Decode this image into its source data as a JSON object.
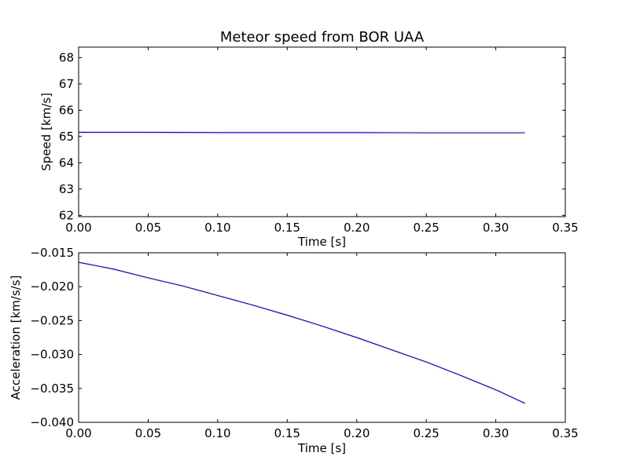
{
  "chart_data": [
    {
      "type": "line",
      "title": "Meteor speed from  BOR UAA",
      "xlabel": "Time [s]",
      "ylabel": "Speed [km/s]",
      "xlim": [
        0.0,
        0.35
      ],
      "ylim": [
        61.95,
        68.4
      ],
      "xticks": [
        "0.00",
        "0.05",
        "0.10",
        "0.15",
        "0.20",
        "0.25",
        "0.30",
        "0.35"
      ],
      "yticks": [
        "62",
        "63",
        "64",
        "65",
        "66",
        "67",
        "68"
      ],
      "grid": false,
      "line_color": "#0000ff",
      "series": [
        {
          "x": [
            0.0,
            0.05,
            0.1,
            0.15,
            0.2,
            0.25,
            0.3,
            0.321
          ],
          "y": [
            65.16,
            65.16,
            65.15,
            65.15,
            65.15,
            65.14,
            65.14,
            65.14
          ]
        }
      ]
    },
    {
      "type": "line",
      "title": "",
      "xlabel": "Time [s]",
      "ylabel": "Acceleration [km/s/s]",
      "xlim": [
        0.0,
        0.35
      ],
      "ylim": [
        -0.04,
        -0.015
      ],
      "xticks": [
        "0.00",
        "0.05",
        "0.10",
        "0.15",
        "0.20",
        "0.25",
        "0.30",
        "0.35"
      ],
      "yticks": [
        "−0.040",
        "−0.035",
        "−0.030",
        "−0.025",
        "−0.020",
        "−0.015"
      ],
      "grid": false,
      "line_color": "#0000ff",
      "series": [
        {
          "x": [
            0.0,
            0.025,
            0.05,
            0.075,
            0.1,
            0.125,
            0.15,
            0.175,
            0.2,
            0.225,
            0.25,
            0.275,
            0.3,
            0.321
          ],
          "y": [
            -0.0164,
            -0.0174,
            -0.0187,
            -0.0199,
            -0.0213,
            -0.0227,
            -0.0242,
            -0.0258,
            -0.0275,
            -0.0293,
            -0.0311,
            -0.0331,
            -0.0352,
            -0.0372
          ]
        }
      ]
    }
  ]
}
